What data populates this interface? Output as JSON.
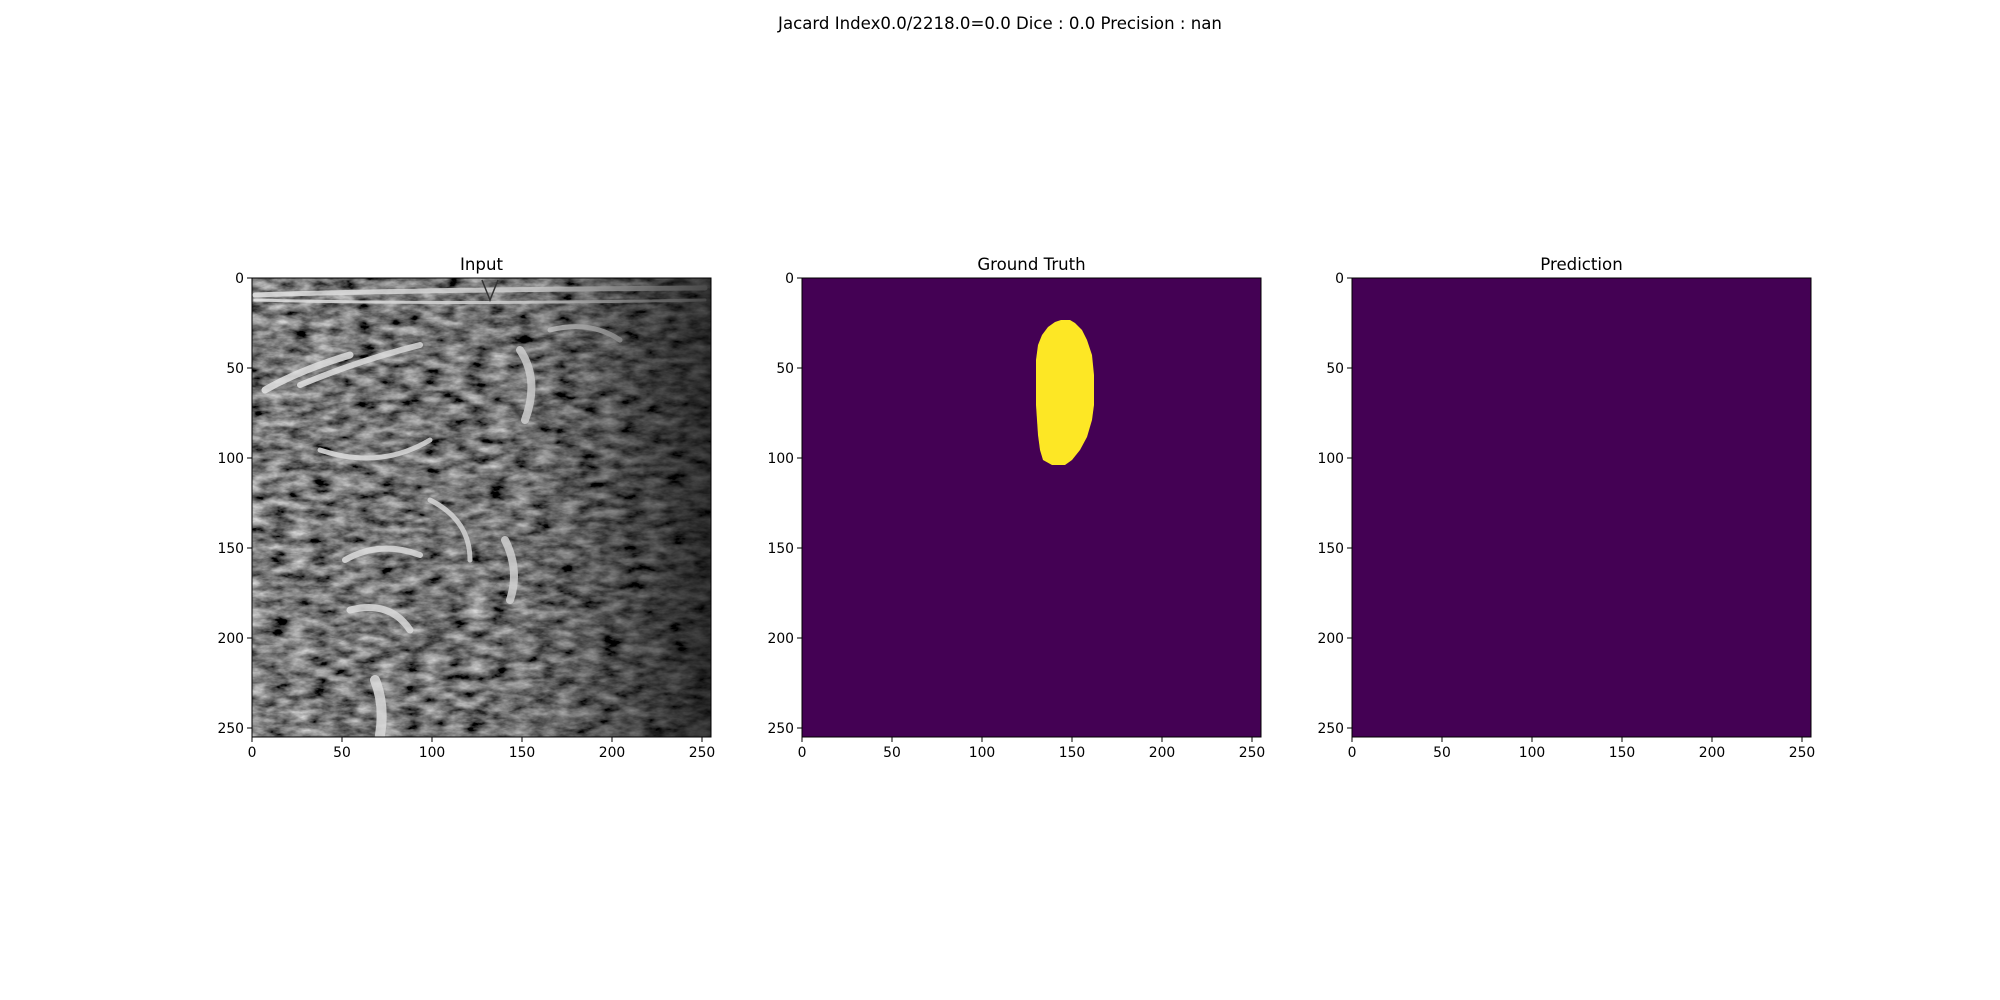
{
  "figure": {
    "suptitle": "Jacard Index0.0/2218.0=0.0 Dice : 0.0 Precision : nan"
  },
  "panels": [
    {
      "title": "Input",
      "kind": "ultrasound-grayscale"
    },
    {
      "title": "Ground Truth",
      "kind": "binary-mask",
      "background_color": "#440154",
      "mask_color": "#fde725"
    },
    {
      "title": "Prediction",
      "kind": "binary-mask-empty",
      "background_color": "#440154"
    }
  ],
  "axes": {
    "x_ticks": [
      "0",
      "50",
      "100",
      "150",
      "200",
      "250"
    ],
    "y_ticks": [
      "0",
      "50",
      "100",
      "150",
      "200",
      "250"
    ],
    "x_range": [
      0,
      255
    ],
    "y_range": [
      0,
      255
    ]
  },
  "chart_data": {
    "type": "heatmap",
    "title": "Jacard Index0.0/2218.0=0.0 Dice : 0.0 Precision : nan",
    "series": [
      {
        "name": "Input"
      },
      {
        "name": "Ground Truth"
      },
      {
        "name": "Prediction"
      }
    ],
    "x_ticks": [
      0,
      50,
      100,
      150,
      200,
      250
    ],
    "y_ticks": [
      0,
      50,
      100,
      150,
      200,
      250
    ],
    "xlim": [
      0,
      255
    ],
    "ylim": [
      255,
      0
    ],
    "colormap": "viridis",
    "ground_truth_mask": {
      "shape": "rounded-blob",
      "x_range": [
        130,
        163
      ],
      "y_range": [
        23,
        103
      ]
    },
    "prediction_mask": "empty"
  }
}
